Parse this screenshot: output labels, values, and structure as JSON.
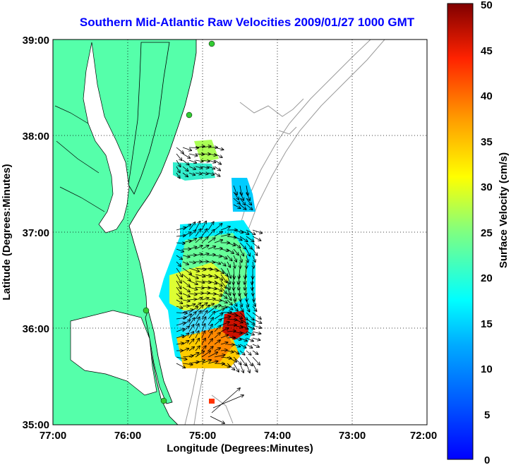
{
  "title": "Southern Mid-Atlantic Raw Velocities 2009/01/27 1000 GMT",
  "x_axis": {
    "label": "Longitude (Degrees:Minutes)",
    "ticks": [
      "77:00",
      "76:00",
      "75:00",
      "74:00",
      "73:00",
      "72:00"
    ],
    "range": [
      -77,
      -72
    ]
  },
  "y_axis": {
    "label": "Latitude (Degrees:Minutes)",
    "ticks": [
      "39:00",
      "38:00",
      "37:00",
      "36:00",
      "35:00"
    ],
    "range": [
      35,
      39
    ]
  },
  "colorbar": {
    "label": "Surface Velocity (cm/s)",
    "ticks": [
      "50",
      "45",
      "40",
      "35",
      "30",
      "25",
      "20",
      "15",
      "10",
      "5",
      "0"
    ],
    "range": [
      0,
      50
    ],
    "colormap": "jet"
  },
  "colors": {
    "land": "#55ffaa",
    "coast": "#000000",
    "bathymetry": "#9a9a9a",
    "grid": "#000000",
    "title": "#0000ff",
    "station": "#33cc33"
  },
  "grid": "dotted"
}
